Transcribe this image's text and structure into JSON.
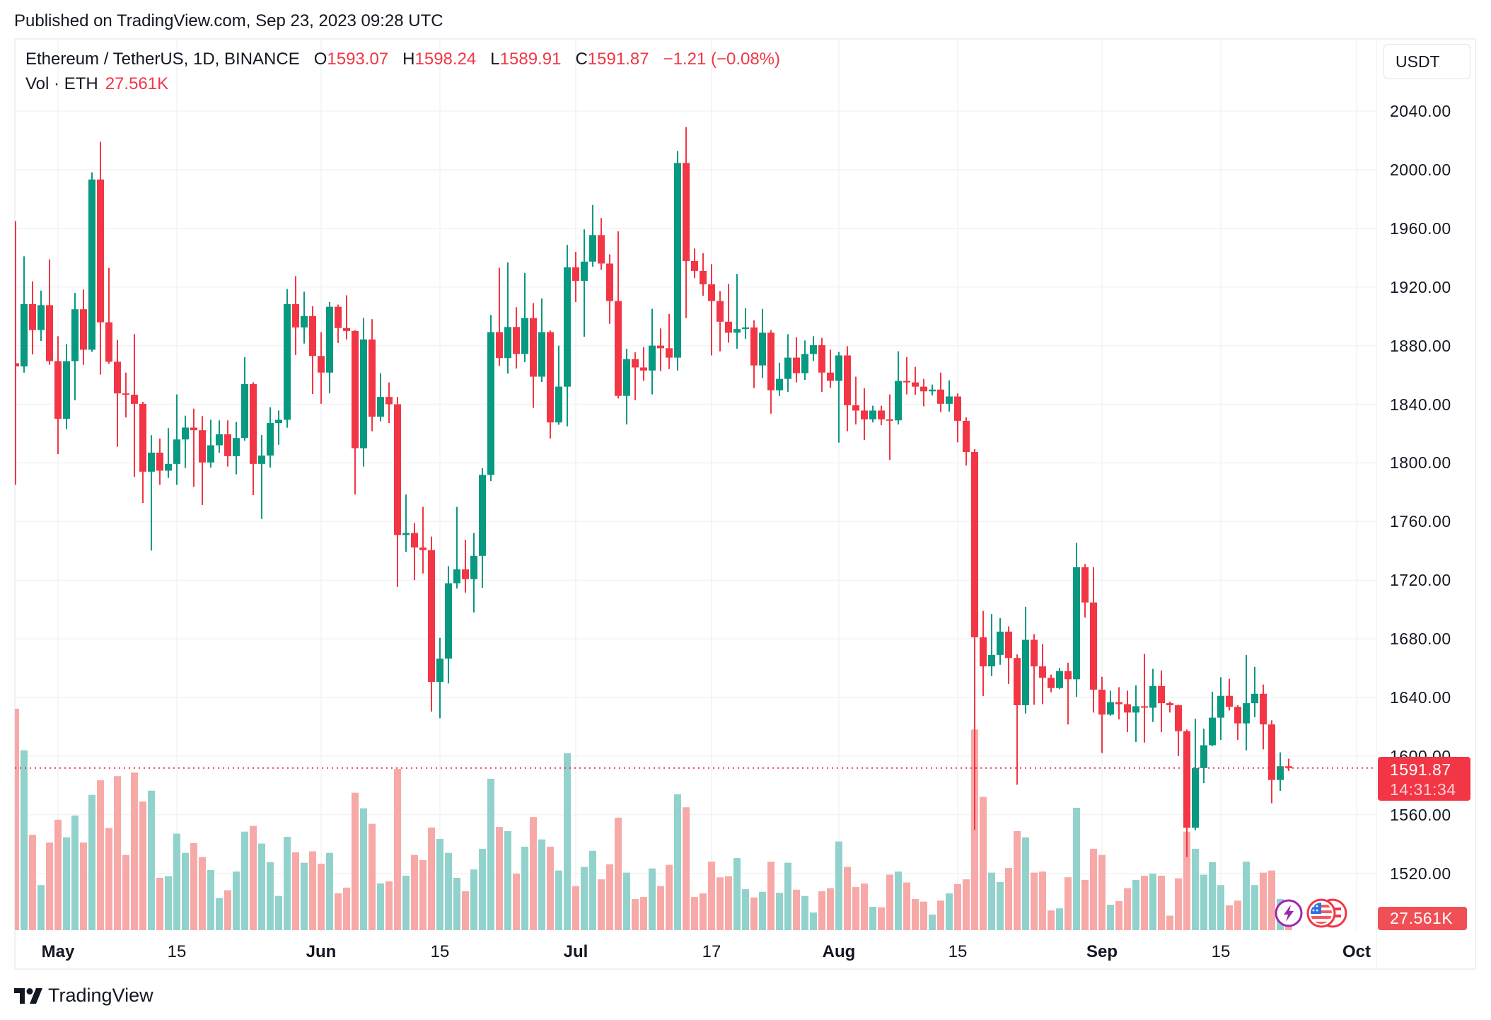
{
  "published": "Published on TradingView.com, Sep 23, 2023 09:28 UTC",
  "legend": {
    "symbol": "Ethereum / TetherUS, 1D, BINANCE",
    "o_label": "O",
    "o_value": "1593.07",
    "h_label": "H",
    "h_value": "1598.24",
    "l_label": "L",
    "l_value": "1589.91",
    "c_label": "C",
    "c_value": "1591.87",
    "change": "−1.21 (−0.08%)",
    "vol_label": "Vol · ETH",
    "vol_value": "27.561K"
  },
  "currency_button": "USDT",
  "price_tag": {
    "price": "1591.87",
    "countdown": "14:31:34"
  },
  "volume_tag": "27.561K",
  "brand": "TradingView",
  "icons": {
    "event_lightning": "lightning-icon",
    "event_us_flag": "us-flag-icon"
  },
  "colors": {
    "up": "#089981",
    "down": "#f23645",
    "up_volume": "#92d2cc",
    "down_volume": "#f7a9a7",
    "grid": "#f2f3f5"
  },
  "chart_data": {
    "type": "candlestick",
    "title": "Ethereum / TetherUS, 1D, BINANCE",
    "xlabel": "",
    "ylabel": "",
    "ylim": [
      1480,
      2060
    ],
    "grid": true,
    "price_axis": {
      "position": "right",
      "ticks": [
        "2040.00",
        "2000.00",
        "1960.00",
        "1920.00",
        "1880.00",
        "1840.00",
        "1800.00",
        "1760.00",
        "1720.00",
        "1680.00",
        "1640.00",
        "1600.00",
        "1560.00",
        "1520.00"
      ]
    },
    "x_ticks": [
      {
        "label": "May",
        "date": "2023-05-01",
        "kind": "month"
      },
      {
        "label": "15",
        "date": "2023-05-15",
        "kind": "day"
      },
      {
        "label": "Jun",
        "date": "2023-06-01",
        "kind": "month"
      },
      {
        "label": "15",
        "date": "2023-06-15",
        "kind": "day"
      },
      {
        "label": "Jul",
        "date": "2023-07-01",
        "kind": "month"
      },
      {
        "label": "17",
        "date": "2023-07-17",
        "kind": "day"
      },
      {
        "label": "Aug",
        "date": "2023-08-01",
        "kind": "month"
      },
      {
        "label": "15",
        "date": "2023-08-15",
        "kind": "day"
      },
      {
        "label": "Sep",
        "date": "2023-09-01",
        "kind": "month"
      },
      {
        "label": "15",
        "date": "2023-09-15",
        "kind": "day"
      },
      {
        "label": "Oct",
        "date": "2023-10-01",
        "kind": "month"
      }
    ],
    "last_price": 1591.87,
    "volume_unit": "K ETH",
    "columns": [
      "date",
      "open",
      "high",
      "low",
      "close",
      "volume"
    ],
    "candles": [
      [
        "2023-04-26",
        1868,
        1965,
        1785,
        1865.8,
        854
      ],
      [
        "2023-04-27",
        1865.8,
        1940.9,
        1861.6,
        1908.3,
        694
      ],
      [
        "2023-04-28",
        1908.3,
        1923.9,
        1874.0,
        1890.6,
        368
      ],
      [
        "2023-04-29",
        1890.6,
        1917.5,
        1883.2,
        1907.6,
        174
      ],
      [
        "2023-04-30",
        1907.6,
        1938.8,
        1866.9,
        1869.4,
        338
      ],
      [
        "2023-05-01",
        1869.4,
        1886.4,
        1806.0,
        1830.1,
        426
      ],
      [
        "2023-05-02",
        1830.1,
        1881.0,
        1823.0,
        1869.4,
        358
      ],
      [
        "2023-05-03",
        1869.4,
        1916.0,
        1842.8,
        1904.8,
        442
      ],
      [
        "2023-05-04",
        1904.8,
        1918.2,
        1866.9,
        1877.2,
        338
      ],
      [
        "2023-05-05",
        1877.2,
        1998.2,
        1875.7,
        1993.3,
        522
      ],
      [
        "2023-05-06",
        1993.3,
        2019.0,
        1860.2,
        1895.9,
        578
      ],
      [
        "2023-05-07",
        1895.9,
        1933.0,
        1867.6,
        1869.0,
        394
      ],
      [
        "2023-05-08",
        1869.0,
        1883.9,
        1811.0,
        1847.4,
        594
      ],
      [
        "2023-05-09",
        1847.4,
        1861.6,
        1831.0,
        1846.5,
        290
      ],
      [
        "2023-05-10",
        1846.5,
        1887.8,
        1790.4,
        1840.3,
        608
      ],
      [
        "2023-05-11",
        1840.3,
        1841.7,
        1772.7,
        1794.0,
        496
      ],
      [
        "2023-05-12",
        1794.0,
        1818.8,
        1740.2,
        1807.0,
        538
      ],
      [
        "2023-05-13",
        1807.0,
        1816.6,
        1785.0,
        1794.7,
        202
      ],
      [
        "2023-05-14",
        1794.7,
        1823.7,
        1789.7,
        1799.3,
        208
      ],
      [
        "2023-05-15",
        1799.3,
        1846.7,
        1785.0,
        1816.0,
        372
      ],
      [
        "2023-05-16",
        1816.0,
        1832.2,
        1796.5,
        1824.1,
        298
      ],
      [
        "2023-05-17",
        1824.1,
        1837.0,
        1783.7,
        1822.3,
        336
      ],
      [
        "2023-05-18",
        1822.3,
        1831.9,
        1771.3,
        1800.3,
        282
      ],
      [
        "2023-05-19",
        1800.3,
        1829.4,
        1796.8,
        1812.0,
        232
      ],
      [
        "2023-05-20",
        1812.0,
        1829.0,
        1807.0,
        1819.5,
        124
      ],
      [
        "2023-05-21",
        1819.5,
        1829.0,
        1797.5,
        1804.6,
        154
      ],
      [
        "2023-05-22",
        1804.6,
        1828.0,
        1792.2,
        1817.0,
        226
      ],
      [
        "2023-05-23",
        1817.0,
        1872.2,
        1815.2,
        1853.8,
        380
      ],
      [
        "2023-05-24",
        1853.8,
        1855.0,
        1778.0,
        1799.3,
        402
      ],
      [
        "2023-05-25",
        1799.3,
        1819.0,
        1761.8,
        1805.0,
        334
      ],
      [
        "2023-05-26",
        1805.0,
        1838.0,
        1796.8,
        1827.2,
        262
      ],
      [
        "2023-05-27",
        1827.2,
        1835.7,
        1812.4,
        1829.4,
        132
      ],
      [
        "2023-05-28",
        1829.4,
        1918.6,
        1824.0,
        1908.3,
        360
      ],
      [
        "2023-05-29",
        1908.3,
        1927.4,
        1873.6,
        1892.4,
        300
      ],
      [
        "2023-05-30",
        1892.4,
        1916.8,
        1881.4,
        1900.2,
        260
      ],
      [
        "2023-05-31",
        1900.2,
        1906.9,
        1847.0,
        1872.9,
        304
      ],
      [
        "2023-06-01",
        1872.9,
        1889.2,
        1840.3,
        1861.6,
        256
      ],
      [
        "2023-06-02",
        1861.6,
        1909.7,
        1847.4,
        1906.5,
        298
      ],
      [
        "2023-06-03",
        1906.5,
        1908.0,
        1881.8,
        1892.0,
        142
      ],
      [
        "2023-06-04",
        1892.0,
        1914.3,
        1884.2,
        1890.0,
        164
      ],
      [
        "2023-06-05",
        1890.0,
        1890.6,
        1778.4,
        1810.0,
        530
      ],
      [
        "2023-06-06",
        1810.0,
        1898.8,
        1797.5,
        1884.2,
        470
      ],
      [
        "2023-06-07",
        1884.2,
        1898.0,
        1821.6,
        1831.5,
        410
      ],
      [
        "2023-06-08",
        1831.5,
        1861.2,
        1828.3,
        1845.0,
        180
      ],
      [
        "2023-06-09",
        1845.0,
        1854.9,
        1827.2,
        1840.0,
        188
      ],
      [
        "2023-06-10",
        1840.0,
        1845.0,
        1715.4,
        1750.8,
        622
      ],
      [
        "2023-06-11",
        1750.8,
        1778.4,
        1739.4,
        1752.2,
        210
      ],
      [
        "2023-06-12",
        1752.2,
        1759.0,
        1720.0,
        1742.3,
        290
      ],
      [
        "2023-06-13",
        1742.3,
        1770.0,
        1724.6,
        1740.5,
        270
      ],
      [
        "2023-06-14",
        1740.5,
        1749.7,
        1630.4,
        1650.6,
        396
      ],
      [
        "2023-06-15",
        1650.6,
        1680.7,
        1625.8,
        1666.5,
        352
      ],
      [
        "2023-06-16",
        1666.5,
        1729.5,
        1649.5,
        1717.9,
        298
      ],
      [
        "2023-06-17",
        1717.9,
        1769.9,
        1714.3,
        1727.4,
        202
      ],
      [
        "2023-06-18",
        1727.4,
        1747.6,
        1711.5,
        1720.7,
        150
      ],
      [
        "2023-06-19",
        1720.7,
        1752.2,
        1698.0,
        1736.6,
        234
      ],
      [
        "2023-06-20",
        1736.6,
        1796.4,
        1714.7,
        1791.8,
        314
      ],
      [
        "2023-06-21",
        1791.8,
        1900.9,
        1787.6,
        1889.2,
        584
      ],
      [
        "2023-06-22",
        1889.2,
        1933.1,
        1866.2,
        1871.5,
        398
      ],
      [
        "2023-06-23",
        1871.5,
        1936.7,
        1860.9,
        1892.7,
        382
      ],
      [
        "2023-06-24",
        1892.7,
        1906.2,
        1864.4,
        1874.3,
        218
      ],
      [
        "2023-06-25",
        1874.3,
        1929.6,
        1868.7,
        1898.8,
        322
      ],
      [
        "2023-06-26",
        1898.8,
        1909.0,
        1837.5,
        1858.8,
        436
      ],
      [
        "2023-06-27",
        1858.8,
        1912.2,
        1855.2,
        1889.2,
        350
      ],
      [
        "2023-06-28",
        1889.2,
        1890.3,
        1816.6,
        1827.6,
        322
      ],
      [
        "2023-06-29",
        1827.6,
        1880.0,
        1826.0,
        1852.0,
        230
      ],
      [
        "2023-06-30",
        1852.0,
        1948.7,
        1825.0,
        1933.4,
        682
      ],
      [
        "2023-07-01",
        1933.4,
        1944.0,
        1909.7,
        1924.2,
        170
      ],
      [
        "2023-07-02",
        1924.2,
        1959.3,
        1886.0,
        1937.3,
        244
      ],
      [
        "2023-07-03",
        1937.3,
        1975.9,
        1933.8,
        1955.4,
        306
      ],
      [
        "2023-07-04",
        1955.4,
        1967.0,
        1931.7,
        1936.0,
        196
      ],
      [
        "2023-07-05",
        1936.0,
        1942.3,
        1894.9,
        1910.4,
        254
      ],
      [
        "2023-07-06",
        1910.4,
        1957.9,
        1844.0,
        1845.7,
        434
      ],
      [
        "2023-07-07",
        1845.7,
        1877.9,
        1826.2,
        1870.8,
        222
      ],
      [
        "2023-07-08",
        1870.8,
        1875.4,
        1842.8,
        1865.1,
        120
      ],
      [
        "2023-07-09",
        1865.1,
        1879.0,
        1856.0,
        1863.0,
        128
      ],
      [
        "2023-07-10",
        1863.0,
        1905.1,
        1846.7,
        1880.0,
        238
      ],
      [
        "2023-07-11",
        1880.0,
        1891.7,
        1862.6,
        1878.2,
        170
      ],
      [
        "2023-07-12",
        1878.2,
        1901.6,
        1864.0,
        1871.8,
        252
      ],
      [
        "2023-07-13",
        1871.8,
        2012.7,
        1863.0,
        2004.6,
        524
      ],
      [
        "2023-07-14",
        2004.6,
        2029.0,
        1898.8,
        1937.7,
        474
      ],
      [
        "2023-07-15",
        1937.7,
        1946.2,
        1926.0,
        1931.0,
        128
      ],
      [
        "2023-07-16",
        1931.0,
        1943.0,
        1914.0,
        1921.8,
        142
      ],
      [
        "2023-07-17",
        1921.8,
        1935.6,
        1873.3,
        1910.4,
        264
      ],
      [
        "2023-07-18",
        1910.4,
        1917.2,
        1876.1,
        1896.3,
        204
      ],
      [
        "2023-07-19",
        1896.3,
        1922.1,
        1882.0,
        1888.8,
        208
      ],
      [
        "2023-07-20",
        1888.8,
        1928.9,
        1877.9,
        1891.3,
        278
      ],
      [
        "2023-07-21",
        1891.3,
        1905.5,
        1884.6,
        1892.4,
        158
      ],
      [
        "2023-07-22",
        1892.4,
        1897.3,
        1851.0,
        1866.5,
        126
      ],
      [
        "2023-07-23",
        1866.5,
        1905.1,
        1858.0,
        1888.8,
        148
      ],
      [
        "2023-07-24",
        1888.8,
        1890.6,
        1833.6,
        1849.5,
        264
      ],
      [
        "2023-07-25",
        1849.5,
        1868.3,
        1845.7,
        1857.3,
        144
      ],
      [
        "2023-07-26",
        1857.3,
        1887.8,
        1848.5,
        1871.8,
        260
      ],
      [
        "2023-07-27",
        1871.8,
        1885.7,
        1854.9,
        1861.2,
        156
      ],
      [
        "2023-07-28",
        1861.2,
        1883.5,
        1856.6,
        1874.3,
        132
      ],
      [
        "2023-07-29",
        1874.3,
        1886.4,
        1869.7,
        1880.3,
        68
      ],
      [
        "2023-07-30",
        1880.3,
        1885.3,
        1848.5,
        1861.6,
        150
      ],
      [
        "2023-07-31",
        1861.6,
        1877.2,
        1851.3,
        1856.0,
        162
      ],
      [
        "2023-08-01",
        1856.0,
        1875.7,
        1813.8,
        1873.3,
        342
      ],
      [
        "2023-08-02",
        1873.3,
        1879.6,
        1821.6,
        1839.3,
        244
      ],
      [
        "2023-08-03",
        1839.3,
        1858.8,
        1826.2,
        1835.7,
        166
      ],
      [
        "2023-08-04",
        1835.7,
        1850.9,
        1815.6,
        1829.7,
        180
      ],
      [
        "2023-08-05",
        1829.7,
        1839.0,
        1827.6,
        1835.7,
        90
      ],
      [
        "2023-08-06",
        1835.7,
        1839.0,
        1825.8,
        1829.7,
        88
      ],
      [
        "2023-08-07",
        1829.7,
        1846.7,
        1802.0,
        1829.0,
        214
      ],
      [
        "2023-08-08",
        1829.0,
        1876.1,
        1826.2,
        1855.9,
        226
      ],
      [
        "2023-08-09",
        1855.9,
        1872.2,
        1846.7,
        1854.9,
        184
      ],
      [
        "2023-08-10",
        1854.9,
        1865.5,
        1846.4,
        1852.0,
        120
      ],
      [
        "2023-08-11",
        1852.0,
        1857.3,
        1838.6,
        1848.8,
        110
      ],
      [
        "2023-08-12",
        1848.8,
        1853.4,
        1846.0,
        1850.0,
        60
      ],
      [
        "2023-08-13",
        1850.0,
        1861.6,
        1834.7,
        1840.3,
        114
      ],
      [
        "2023-08-14",
        1840.3,
        1856.3,
        1835.0,
        1845.3,
        142
      ],
      [
        "2023-08-15",
        1845.3,
        1847.4,
        1814.0,
        1828.7,
        178
      ],
      [
        "2023-08-16",
        1828.7,
        1831.1,
        1798.2,
        1807.4,
        196
      ],
      [
        "2023-08-17",
        1807.4,
        1809.5,
        1549.7,
        1681.0,
        774
      ],
      [
        "2023-08-18",
        1681.0,
        1699.0,
        1641.0,
        1661.2,
        514
      ],
      [
        "2023-08-19",
        1661.2,
        1696.9,
        1654.5,
        1669.0,
        222
      ],
      [
        "2023-08-20",
        1669.0,
        1694.1,
        1662.3,
        1684.9,
        186
      ],
      [
        "2023-08-21",
        1684.9,
        1688.5,
        1649.2,
        1666.9,
        240
      ],
      [
        "2023-08-22",
        1666.9,
        1669.4,
        1580.5,
        1634.7,
        382
      ],
      [
        "2023-08-23",
        1634.7,
        1701.9,
        1629.0,
        1679.3,
        358
      ],
      [
        "2023-08-24",
        1679.3,
        1683.2,
        1635.0,
        1661.2,
        222
      ],
      [
        "2023-08-25",
        1661.2,
        1676.4,
        1635.4,
        1653.4,
        226
      ],
      [
        "2023-08-26",
        1653.4,
        1655.6,
        1643.5,
        1646.4,
        76
      ],
      [
        "2023-08-27",
        1646.4,
        1660.2,
        1645.6,
        1658.0,
        84
      ],
      [
        "2023-08-28",
        1658.0,
        1663.7,
        1621.6,
        1652.4,
        204
      ],
      [
        "2023-08-29",
        1652.4,
        1745.5,
        1640.4,
        1728.8,
        472
      ],
      [
        "2023-08-30",
        1728.8,
        1731.0,
        1694.5,
        1704.8,
        194
      ],
      [
        "2023-08-31",
        1704.8,
        1728.8,
        1629.7,
        1645.3,
        314
      ],
      [
        "2023-09-01",
        1645.3,
        1654.1,
        1602.1,
        1628.3,
        290
      ],
      [
        "2023-09-02",
        1628.3,
        1644.6,
        1627.6,
        1636.8,
        98
      ],
      [
        "2023-09-03",
        1636.8,
        1647.0,
        1625.0,
        1635.4,
        112
      ],
      [
        "2023-09-04",
        1635.4,
        1644.6,
        1616.3,
        1629.7,
        162
      ],
      [
        "2023-09-05",
        1629.7,
        1648.2,
        1609.6,
        1634.0,
        194
      ],
      [
        "2023-09-06",
        1634.0,
        1669.7,
        1609.2,
        1633.0,
        210
      ],
      [
        "2023-09-07",
        1633.0,
        1659.5,
        1623.3,
        1647.8,
        218
      ],
      [
        "2023-09-08",
        1647.8,
        1658.4,
        1616.3,
        1636.1,
        210
      ],
      [
        "2023-09-09",
        1636.1,
        1637.2,
        1629.7,
        1634.7,
        56
      ],
      [
        "2023-09-10",
        1634.7,
        1635.0,
        1600.0,
        1617.0,
        200
      ],
      [
        "2023-09-11",
        1617.0,
        1618.1,
        1531.0,
        1551.1,
        380
      ],
      [
        "2023-09-12",
        1551.1,
        1625.5,
        1549.4,
        1591.8,
        314
      ],
      [
        "2023-09-13",
        1591.8,
        1618.7,
        1581.6,
        1607.4,
        214
      ],
      [
        "2023-09-14",
        1607.4,
        1643.9,
        1606.7,
        1626.2,
        262
      ],
      [
        "2023-09-15",
        1626.2,
        1653.8,
        1611.0,
        1641.1,
        174
      ],
      [
        "2023-09-16",
        1641.1,
        1652.7,
        1631.1,
        1633.6,
        96
      ],
      [
        "2023-09-17",
        1633.6,
        1634.7,
        1611.0,
        1622.3,
        114
      ],
      [
        "2023-09-18",
        1622.3,
        1669.0,
        1603.9,
        1636.1,
        264
      ],
      [
        "2023-09-19",
        1636.1,
        1660.9,
        1626.5,
        1642.5,
        174
      ],
      [
        "2023-09-20",
        1642.5,
        1648.8,
        1604.6,
        1621.6,
        222
      ],
      [
        "2023-09-21",
        1621.6,
        1624.4,
        1567.8,
        1583.7,
        230
      ],
      [
        "2023-09-22",
        1583.7,
        1602.5,
        1576.3,
        1593.07,
        120
      ],
      [
        "2023-09-23",
        1593.07,
        1598.24,
        1589.91,
        1591.87,
        27.561
      ]
    ]
  }
}
